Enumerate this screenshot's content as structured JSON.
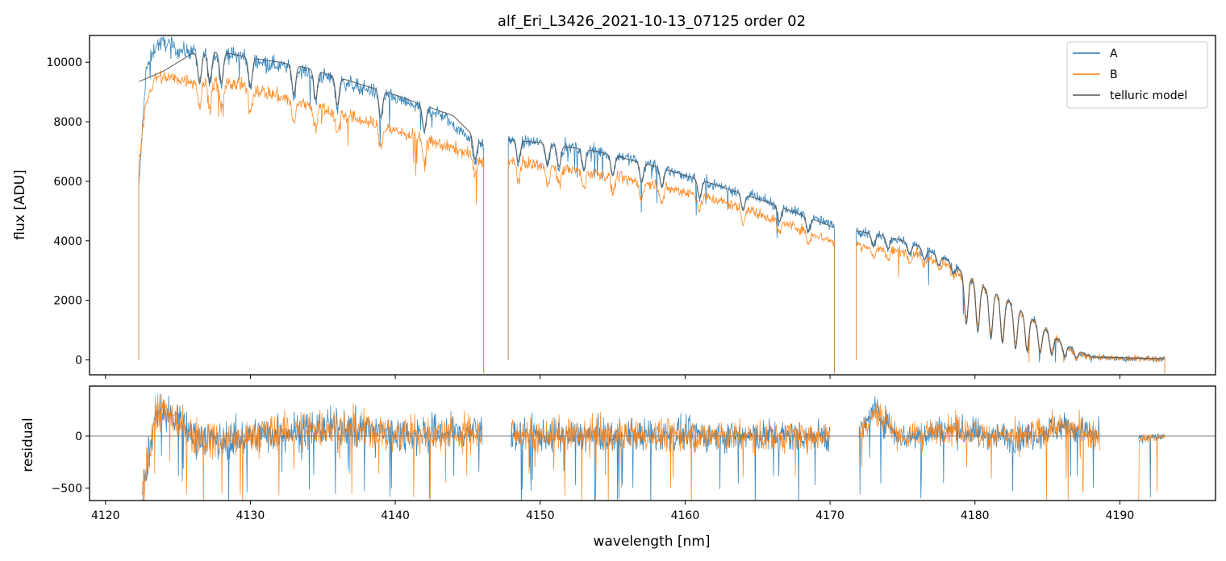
{
  "chart_data": [
    {
      "panel": "main",
      "type": "line",
      "title": "alf_Eri_L3426_2021-10-13_07125  order 02",
      "xlabel": "",
      "ylabel": "flux [ADU]",
      "xlim": [
        4118.9,
        4196.6
      ],
      "ylim": [
        -500,
        10900
      ],
      "yticks": [
        0,
        2000,
        4000,
        6000,
        8000,
        10000
      ],
      "ytick_labels": [
        "0",
        "2000",
        "4000",
        "6000",
        "8000",
        "10000"
      ],
      "legend": {
        "location": "top-right",
        "entries": [
          "A",
          "B",
          "telluric model"
        ]
      },
      "colors": {
        "A": "#1f77b4",
        "B": "#ff7f0e",
        "telluric model": "#555555"
      },
      "segments": [
        {
          "range": [
            4122.3,
            4146.1
          ],
          "A": {
            "x": [
              4122.3,
              4122.8,
              4123.5,
              4124.2,
              4125,
              4127,
              4129,
              4131,
              4133,
              4135,
              4137,
              4139,
              4141,
              4143,
              4145,
              4146.1
            ],
            "y": [
              5800,
              9700,
              10600,
              10650,
              10400,
              10300,
              10250,
              10000,
              9800,
              9550,
              9250,
              8950,
              8600,
              8300,
              7500,
              7200
            ]
          },
          "B": {
            "x": [
              4122.3,
              4122.8,
              4123.5,
              4124.2,
              4125,
              4127,
              4129,
              4131,
              4133,
              4135,
              4137,
              4139,
              4141,
              4143,
              4145,
              4146.1
            ],
            "y": [
              6500,
              8700,
              9500,
              9500,
              9420,
              9350,
              9250,
              9000,
              8700,
              8450,
              8150,
              7850,
              7550,
              7250,
              6950,
              6650
            ]
          }
        },
        {
          "range": [
            4147.8,
            4170.3
          ],
          "A": {
            "x": [
              4147.8,
              4148.5,
              4150,
              4152,
              4154,
              4156,
              4158,
              4160,
              4162,
              4164,
              4166,
              4168,
              4170.3
            ],
            "y": [
              7400,
              7350,
              7300,
              7150,
              7000,
              6800,
              6500,
              6200,
              5900,
              5600,
              5250,
              4900,
              4500
            ]
          },
          "B": {
            "x": [
              4147.8,
              4148.5,
              4150,
              4152,
              4154,
              4156,
              4158,
              4160,
              4162,
              4164,
              4166,
              4168,
              4170.3
            ],
            "y": [
              6700,
              6650,
              6550,
              6400,
              6250,
              6050,
              5850,
              5650,
              5400,
              5100,
              4750,
              4400,
              3950
            ]
          }
        },
        {
          "range": [
            4171.8,
            4193.1
          ],
          "A": {
            "x": [
              4171.8,
              4172.2,
              4173,
              4174,
              4175,
              4176,
              4177,
              4178,
              4179,
              4180,
              4181,
              4182,
              4183,
              4184,
              4185,
              4186,
              4187,
              4188,
              4190,
              4193.1
            ],
            "y": [
              4350,
              4300,
              4250,
              4150,
              4000,
              3850,
              3650,
              3400,
              3000,
              2600,
              2350,
              2100,
              1700,
              1350,
              1000,
              600,
              250,
              100,
              40,
              40
            ]
          },
          "B": {
            "x": [
              4171.8,
              4172.2,
              4173,
              4174,
              4175,
              4176,
              4177,
              4178,
              4179,
              4180,
              4181,
              4182,
              4183,
              4184,
              4185,
              4186,
              4187,
              4188,
              4190,
              4193.1
            ],
            "y": [
              3900,
              3850,
              3750,
              3700,
              3650,
              3550,
              3400,
              3200,
              2900,
              2700,
              2300,
              2100,
              1700,
              1300,
              1000,
              550,
              200,
              100,
              40,
              40
            ]
          }
        }
      ],
      "telluric_model": {
        "x": [
          4122.3,
          4124,
          4126,
          4128,
          4130,
          4132,
          4134,
          4136,
          4138,
          4140,
          4142,
          4144,
          4146.1,
          4147.8,
          4150,
          4154,
          4158,
          4162,
          4166,
          4170.3,
          4172.2,
          4174,
          4176,
          4178,
          4180,
          4182,
          4184,
          4186,
          4188,
          4193.1
        ],
        "y": [
          9350,
          9700,
          10300,
          10350,
          10150,
          10000,
          9800,
          9500,
          9200,
          8900,
          8550,
          8200,
          7200,
          7400,
          7300,
          7000,
          6500,
          5900,
          5250,
          4450,
          4300,
          4150,
          3850,
          3400,
          2600,
          2100,
          1350,
          600,
          100,
          40
        ]
      },
      "absorption_lines_nm": [
        4126.5,
        4127.2,
        4128,
        4130,
        4133,
        4134.5,
        4136,
        4139,
        4142,
        4145.5,
        4148.5,
        4150.5,
        4151.3,
        4153,
        4155,
        4157,
        4158.4,
        4161,
        4164,
        4166.5,
        4168.5,
        4173,
        4174,
        4175.5,
        4176.5,
        4177.5,
        4178.5,
        4179.4,
        4180.2,
        4181.1,
        4181.9,
        4182.8,
        4183.6,
        4184.5,
        4185.3,
        4186.2,
        4187
      ]
    },
    {
      "panel": "residual",
      "type": "line",
      "xlabel": "wavelength [nm]",
      "ylabel": "residual",
      "xlim": [
        4118.9,
        4196.6
      ],
      "ylim": [
        -620,
        480
      ],
      "xticks": [
        4120,
        4130,
        4140,
        4150,
        4160,
        4170,
        4180,
        4190
      ],
      "xtick_labels": [
        "4120",
        "4130",
        "4140",
        "4150",
        "4160",
        "4170",
        "4180",
        "4190"
      ],
      "yticks": [
        -500,
        0
      ],
      "ytick_labels": [
        "−500",
        "0"
      ],
      "zero_line": 0,
      "segments": [
        {
          "range": [
            4122.5,
            4146
          ],
          "bias": {
            "x": [
              4122.5,
              4123.5,
              4124.5,
              4126,
              4128,
              4132,
              4136,
              4140,
              4146
            ],
            "y": [
              -600,
              250,
              200,
              20,
              -50,
              40,
              80,
              20,
              40
            ]
          },
          "spread": 130
        },
        {
          "range": [
            4148,
            4170
          ],
          "bias": {
            "x": [
              4148,
              4152,
              4158,
              4164,
              4170
            ],
            "y": [
              20,
              0,
              10,
              0,
              10
            ]
          },
          "spread": 110
        },
        {
          "range": [
            4172,
            4188.6
          ],
          "bias": {
            "x": [
              4172,
              4173,
              4175,
              4178,
              4180,
              4183,
              4186,
              4188.6
            ],
            "y": [
              0,
              250,
              -20,
              60,
              30,
              -20,
              100,
              0
            ]
          },
          "spread": 100
        },
        {
          "range": [
            4191.3,
            4193.1
          ],
          "bias": {
            "x": [
              4191.3,
              4193.1
            ],
            "y": [
              -20,
              -10
            ]
          },
          "spread": 30
        }
      ]
    }
  ]
}
